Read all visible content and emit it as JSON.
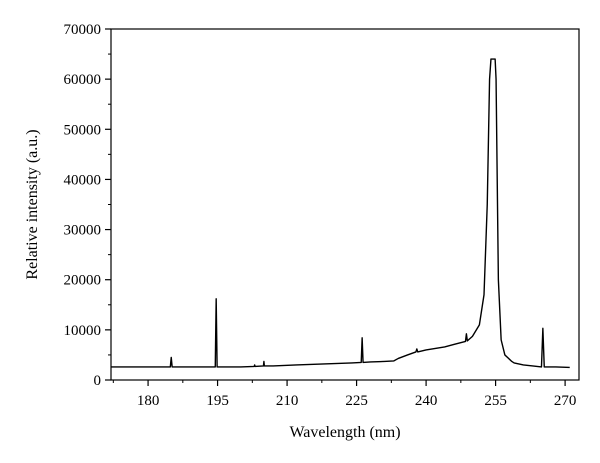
{
  "chart_data": {
    "type": "line",
    "xlabel": "Wavelength (nm)",
    "ylabel": "Relative intensity (a.u.)",
    "xlim": [
      172,
      273
    ],
    "ylim": [
      0,
      70000
    ],
    "x_ticks": [
      180,
      195,
      210,
      225,
      240,
      255,
      270
    ],
    "y_ticks": [
      0,
      10000,
      20000,
      30000,
      40000,
      50000,
      60000,
      70000
    ],
    "x_tick_labels": [
      "180",
      "195",
      "210",
      "225",
      "240",
      "255",
      "270"
    ],
    "y_tick_labels": [
      "0",
      "10000",
      "20000",
      "30000",
      "40000",
      "50000",
      "60000",
      "70000"
    ],
    "grid": false,
    "legend": "none",
    "line_color": "#000000",
    "series": [
      {
        "x": [
          172,
          180,
          184.8,
          185.0,
          185.2,
          186,
          190,
          194.5,
          194.7,
          194.9,
          195.2,
          197,
          200,
          202.9,
          203.0,
          203.1,
          204.9,
          205.0,
          205.1,
          207,
          212,
          218,
          224,
          226.0,
          226.2,
          226.4,
          228,
          231,
          233,
          234,
          236,
          237.8,
          238.0,
          238.2,
          240,
          242,
          244,
          246,
          248.5,
          248.7,
          248.9,
          250,
          251.5,
          252.5,
          253.2,
          253.7,
          254.0,
          254.9,
          255.1,
          255.6,
          256.2,
          257,
          258.5,
          259,
          261,
          263,
          264.9,
          265.2,
          265.5,
          266,
          268,
          271
        ],
        "y": [
          2600,
          2600,
          2600,
          4500,
          2600,
          2600,
          2600,
          2600,
          16200,
          2600,
          2600,
          2600,
          2600,
          2700,
          3000,
          2700,
          2800,
          3700,
          2800,
          2800,
          3000,
          3200,
          3400,
          3500,
          8400,
          3500,
          3600,
          3700,
          3800,
          4300,
          5000,
          5600,
          6200,
          5600,
          6000,
          6300,
          6600,
          7100,
          7700,
          9200,
          7800,
          8700,
          11000,
          17000,
          35000,
          60000,
          64000,
          64000,
          60000,
          20000,
          8000,
          5000,
          3700,
          3400,
          3000,
          2800,
          2600,
          10300,
          2600,
          2600,
          2600,
          2500
        ]
      }
    ]
  }
}
